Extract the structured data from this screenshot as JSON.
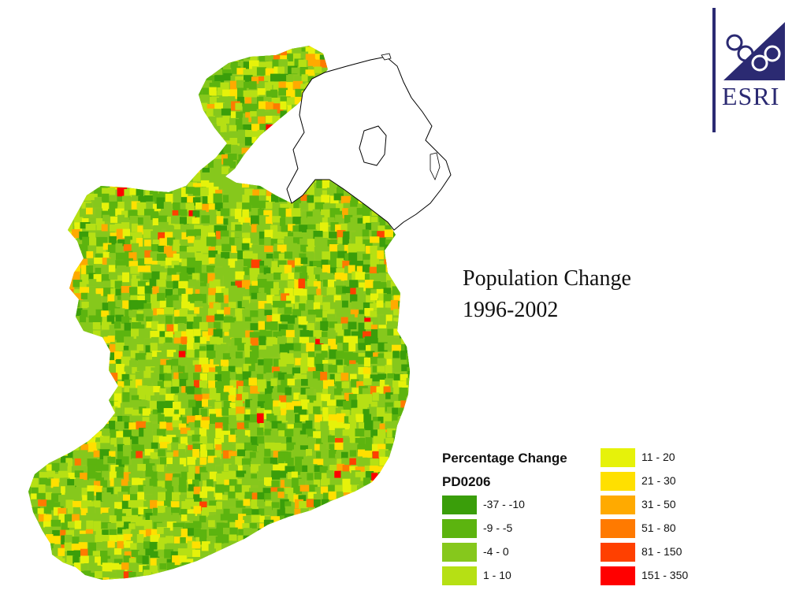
{
  "title": {
    "line1": "Population Change",
    "line2": "1996-2002"
  },
  "legend": {
    "title": "Percentage Change",
    "field": "PD0206",
    "classes": [
      {
        "label": "-37 - -10",
        "color": "#3a9e0a"
      },
      {
        "label": "-9 - -5",
        "color": "#5cb40f"
      },
      {
        "label": "-4 - 0",
        "color": "#86c81c"
      },
      {
        "label": "1 - 10",
        "color": "#b6e014"
      },
      {
        "label": "11 - 20",
        "color": "#e6f20a"
      },
      {
        "label": "21 - 30",
        "color": "#ffe000"
      },
      {
        "label": "31 - 50",
        "color": "#ffaa00"
      },
      {
        "label": "51 - 80",
        "color": "#ff7a00"
      },
      {
        "label": "81 - 150",
        "color": "#ff4000"
      },
      {
        "label": "151 - 350",
        "color": "#ff0000"
      }
    ]
  },
  "logo": {
    "text": "ESRI",
    "color": "#2b2a72"
  },
  "map": {
    "outline_color": "#000000",
    "water_color": "#ffffff"
  }
}
